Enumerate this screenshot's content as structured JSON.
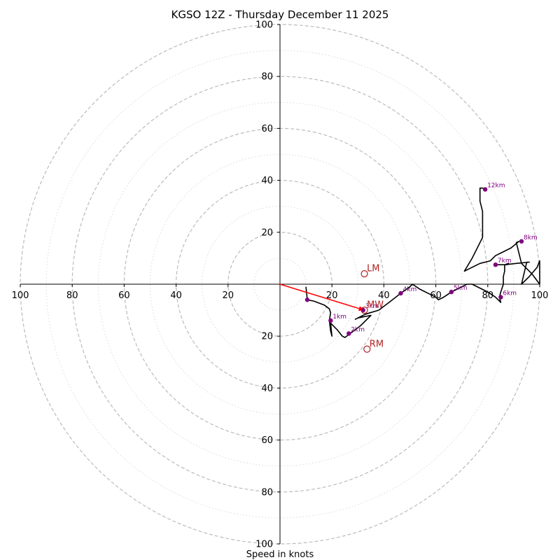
{
  "chart_data": {
    "type": "hodograph",
    "title": "KGSO 12Z - Thursday December 11 2025",
    "xlabel": "Speed in knots",
    "units": "knots",
    "range": [
      -100,
      100
    ],
    "rings_major": [
      20,
      40,
      60,
      80,
      100
    ],
    "rings_minor": [
      10,
      30,
      50,
      70,
      90
    ],
    "tick_labels": {
      "x": [
        {
          "value": -100,
          "label": "100"
        },
        {
          "value": -80,
          "label": "80"
        },
        {
          "value": -60,
          "label": "60"
        },
        {
          "value": -40,
          "label": "40"
        },
        {
          "value": -20,
          "label": "20"
        },
        {
          "value": 20,
          "label": "20"
        },
        {
          "value": 40,
          "label": "40"
        },
        {
          "value": 60,
          "label": "60"
        },
        {
          "value": 80,
          "label": "80"
        },
        {
          "value": 100,
          "label": "100"
        }
      ],
      "y": [
        {
          "value": 100,
          "label": "100"
        },
        {
          "value": 80,
          "label": "80"
        },
        {
          "value": 60,
          "label": "60"
        },
        {
          "value": 40,
          "label": "40"
        },
        {
          "value": 20,
          "label": "20"
        },
        {
          "value": -20,
          "label": "20"
        },
        {
          "value": -40,
          "label": "40"
        },
        {
          "value": -60,
          "label": "60"
        },
        {
          "value": -80,
          "label": "80"
        },
        {
          "value": -100,
          "label": "100"
        }
      ]
    },
    "trace": [
      [
        10,
        -1
      ],
      [
        10.5,
        -6
      ],
      [
        13,
        -6.5
      ],
      [
        17,
        -8
      ],
      [
        19,
        -9.5
      ],
      [
        19.5,
        -11
      ],
      [
        19,
        -14
      ],
      [
        19.5,
        -18
      ],
      [
        20,
        -20
      ],
      [
        19.5,
        -15
      ],
      [
        22,
        -17.5
      ],
      [
        24,
        -20
      ],
      [
        25,
        -20.5
      ],
      [
        27,
        -19
      ],
      [
        31,
        -16
      ],
      [
        35,
        -12
      ],
      [
        30,
        -13
      ],
      [
        29,
        -13.5
      ],
      [
        31,
        -12.5
      ],
      [
        33,
        -11.5
      ],
      [
        38,
        -10
      ],
      [
        42,
        -7
      ],
      [
        46.5,
        -3.5
      ],
      [
        50,
        -1
      ],
      [
        51,
        0
      ],
      [
        54,
        -2
      ],
      [
        58,
        -4
      ],
      [
        60,
        -5
      ],
      [
        61,
        -6
      ],
      [
        63,
        -5
      ],
      [
        66,
        -3
      ],
      [
        70,
        -1
      ],
      [
        72,
        0
      ],
      [
        74,
        0
      ],
      [
        77,
        -1.5
      ],
      [
        80,
        -3
      ],
      [
        83,
        -5
      ],
      [
        85,
        -7
      ],
      [
        84.5,
        -5
      ],
      [
        85,
        -3
      ],
      [
        86,
        0
      ],
      [
        86,
        3
      ],
      [
        86.5,
        5
      ],
      [
        86.5,
        7.5
      ],
      [
        88,
        8
      ],
      [
        87.5,
        7.5
      ],
      [
        83,
        7.5
      ],
      [
        86.5,
        7.5
      ],
      [
        91,
        8
      ],
      [
        96,
        8.5
      ],
      [
        95,
        8.5
      ],
      [
        93,
        0
      ],
      [
        96,
        3
      ],
      [
        99,
        6.5
      ],
      [
        100,
        9
      ],
      [
        100,
        0
      ],
      [
        97,
        4
      ],
      [
        93,
        8
      ],
      [
        91,
        16
      ],
      [
        92,
        16.5
      ],
      [
        89,
        14
      ],
      [
        85,
        12
      ],
      [
        83,
        11
      ],
      [
        81,
        9
      ],
      [
        77,
        8
      ],
      [
        73,
        6
      ],
      [
        71,
        5
      ],
      [
        74,
        10
      ],
      [
        78,
        18
      ],
      [
        78,
        24
      ],
      [
        78,
        28
      ],
      [
        77,
        32
      ],
      [
        77,
        35
      ],
      [
        77,
        37
      ],
      [
        78,
        37
      ],
      [
        79,
        36.5
      ]
    ],
    "points": [
      {
        "label": "",
        "x": 10.5,
        "y": -6
      },
      {
        "label": "1km",
        "x": 19.5,
        "y": -14
      },
      {
        "label": "2km",
        "x": 26.5,
        "y": -19
      },
      {
        "label": "3km",
        "x": 32,
        "y": -10
      },
      {
        "label": "4km",
        "x": 46.5,
        "y": -3.5
      },
      {
        "label": "5km",
        "x": 66,
        "y": -3
      },
      {
        "label": "6km",
        "x": 85,
        "y": -5
      },
      {
        "label": "7km",
        "x": 83,
        "y": 7.5
      },
      {
        "label": "8km",
        "x": 93,
        "y": 16.5
      },
      {
        "label": "12km",
        "x": 79,
        "y": 36.5
      }
    ],
    "motion_markers": [
      {
        "label": "LM",
        "x": 32.5,
        "y": 4
      },
      {
        "label": "MW",
        "x": 32.5,
        "y": -10
      },
      {
        "label": "RM",
        "x": 33.5,
        "y": -25
      }
    ],
    "shear_vector": {
      "from": [
        0,
        0
      ],
      "to": [
        32.5,
        -10
      ]
    },
    "colors": {
      "trace": "#000000",
      "points": "#800080",
      "markers": "#b22222",
      "vector": "#ff0000",
      "rings": "#bbbbbb",
      "minor_rings": "#d9d9d9"
    }
  }
}
